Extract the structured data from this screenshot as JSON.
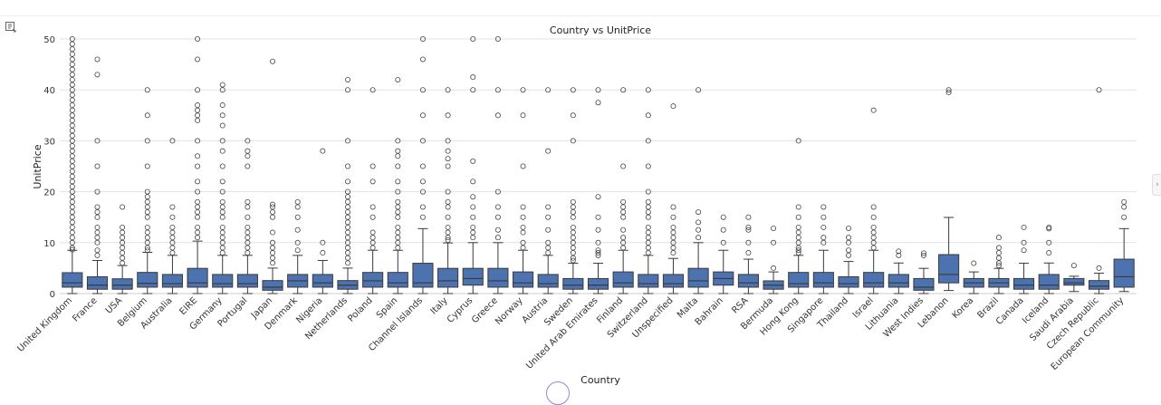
{
  "cell": {
    "output_icon": "output-collapse-icon",
    "side_toggle": "›"
  },
  "chart_data": {
    "type": "boxplot",
    "title": "Country vs UnitPrice",
    "xlabel": "Country",
    "ylabel": "UnitPrice",
    "ylim": [
      0,
      50
    ],
    "yticks": [
      0,
      10,
      20,
      30,
      40,
      50
    ],
    "grid": "horizontal",
    "box_color": "#4c72b0",
    "categories": [
      {
        "name": "United Kingdom",
        "q1": 1.25,
        "median": 2.1,
        "q3": 4.1,
        "lo": 0,
        "hi": 8.5,
        "outliers": [
          8.6,
          9,
          10,
          11,
          12,
          13,
          14,
          15,
          16,
          17,
          18,
          19,
          20,
          21,
          22,
          23,
          24,
          25,
          26,
          27,
          28,
          29,
          30,
          31,
          32,
          33,
          34,
          35,
          36,
          37,
          38,
          39,
          40,
          41,
          42,
          43,
          44,
          45,
          46,
          47,
          48,
          49,
          50
        ]
      },
      {
        "name": "France",
        "q1": 0.85,
        "median": 1.65,
        "q3": 3.3,
        "lo": 0,
        "hi": 6.5,
        "outliers": [
          7.5,
          8.5,
          10,
          11,
          12,
          13,
          15,
          16,
          17,
          20,
          25,
          30,
          43,
          46
        ]
      },
      {
        "name": "USA",
        "q1": 0.85,
        "median": 1.65,
        "q3": 2.9,
        "lo": 0,
        "hi": 5.5,
        "outliers": [
          6,
          7,
          8,
          9,
          10,
          11,
          12,
          13,
          17
        ]
      },
      {
        "name": "Belgium",
        "q1": 1.25,
        "median": 2.0,
        "q3": 4.15,
        "lo": 0,
        "hi": 8.1,
        "outliers": [
          8.5,
          9,
          10,
          11,
          12,
          13,
          15,
          16,
          17,
          18,
          19,
          20,
          25,
          30,
          35,
          40
        ]
      },
      {
        "name": "Australia",
        "q1": 1.25,
        "median": 1.95,
        "q3": 3.75,
        "lo": 0,
        "hi": 7.5,
        "outliers": [
          8,
          9,
          10,
          11,
          12,
          13,
          15,
          17,
          30
        ]
      },
      {
        "name": "EIRE",
        "q1": 1.25,
        "median": 2.1,
        "q3": 4.95,
        "lo": 0,
        "hi": 10.3,
        "outliers": [
          11,
          12,
          13,
          15,
          16,
          17,
          18,
          20,
          22,
          25,
          27,
          30,
          34,
          35,
          36,
          37,
          40,
          46,
          50
        ]
      },
      {
        "name": "Germany",
        "q1": 1.25,
        "median": 1.95,
        "q3": 3.75,
        "lo": 0,
        "hi": 7.5,
        "outliers": [
          8,
          9,
          10,
          11,
          12,
          13,
          15,
          16,
          17,
          18,
          20,
          22,
          25,
          28,
          30,
          33,
          35,
          37,
          40,
          41
        ]
      },
      {
        "name": "Portugal",
        "q1": 1.25,
        "median": 1.95,
        "q3": 3.75,
        "lo": 0,
        "hi": 7.5,
        "outliers": [
          8,
          9,
          10,
          11,
          12,
          13,
          15,
          17,
          18,
          25,
          27,
          28,
          30
        ]
      },
      {
        "name": "Japan",
        "q1": 0.65,
        "median": 1.25,
        "q3": 2.55,
        "lo": 0,
        "hi": 5.0,
        "outliers": [
          6,
          7,
          8,
          9,
          10,
          12,
          15,
          16,
          17,
          17.5,
          45.6
        ]
      },
      {
        "name": "Denmark",
        "q1": 1.25,
        "median": 2.5,
        "q3": 3.75,
        "lo": 0,
        "hi": 7.5,
        "outliers": [
          8.5,
          10,
          12.5,
          15,
          17,
          18
        ]
      },
      {
        "name": "Nigeria",
        "q1": 1.25,
        "median": 2.1,
        "q3": 3.75,
        "lo": 0,
        "hi": 6.5,
        "outliers": [
          8,
          10,
          28
        ]
      },
      {
        "name": "Netherlands",
        "q1": 0.85,
        "median": 1.65,
        "q3": 2.55,
        "lo": 0,
        "hi": 5.0,
        "outliers": [
          6,
          7,
          8,
          9,
          10,
          11,
          12,
          13,
          14,
          15,
          16,
          17,
          18,
          19,
          20,
          22,
          25,
          30,
          40,
          42
        ]
      },
      {
        "name": "Poland",
        "q1": 1.25,
        "median": 2.5,
        "q3": 4.15,
        "lo": 0,
        "hi": 8.5,
        "outliers": [
          9,
          10,
          11,
          12,
          15,
          17,
          22,
          25,
          40
        ]
      },
      {
        "name": "Spain",
        "q1": 1.25,
        "median": 2.1,
        "q3": 4.15,
        "lo": 0,
        "hi": 8.5,
        "outliers": [
          9,
          10,
          11,
          12,
          13,
          15,
          16,
          17,
          18,
          20,
          22,
          25,
          27,
          28,
          30,
          42
        ]
      },
      {
        "name": "Channel Islands",
        "q1": 1.25,
        "median": 2.1,
        "q3": 5.95,
        "lo": 0,
        "hi": 12.75,
        "outliers": [
          15,
          17,
          20,
          22,
          25,
          30,
          35,
          40,
          46,
          50
        ]
      },
      {
        "name": "Italy",
        "q1": 1.25,
        "median": 2.5,
        "q3": 4.95,
        "lo": 0,
        "hi": 9.95,
        "outliers": [
          10.5,
          11,
          12,
          13,
          15,
          17,
          18,
          20,
          25,
          26.5,
          28,
          30,
          35,
          40
        ]
      },
      {
        "name": "Cyprus",
        "q1": 1.65,
        "median": 2.95,
        "q3": 4.95,
        "lo": 0,
        "hi": 10,
        "outliers": [
          11,
          12,
          13,
          15,
          17,
          19,
          22,
          26,
          40,
          42.5,
          50
        ]
      },
      {
        "name": "Greece",
        "q1": 1.25,
        "median": 2.5,
        "q3": 4.95,
        "lo": 0,
        "hi": 10,
        "outliers": [
          11,
          12.5,
          15,
          17,
          20,
          35,
          40,
          50
        ]
      },
      {
        "name": "Norway",
        "q1": 1.25,
        "median": 2.1,
        "q3": 4.25,
        "lo": 0,
        "hi": 8.5,
        "outliers": [
          9,
          10,
          12,
          13,
          15,
          17,
          25,
          35,
          40
        ]
      },
      {
        "name": "Austria",
        "q1": 1.25,
        "median": 1.95,
        "q3": 3.75,
        "lo": 0,
        "hi": 7.5,
        "outliers": [
          8,
          9,
          10,
          12.5,
          15,
          17,
          28,
          40
        ]
      },
      {
        "name": "Sweden",
        "q1": 0.85,
        "median": 1.65,
        "q3": 2.95,
        "lo": 0,
        "hi": 5.95,
        "outliers": [
          6.5,
          7,
          8,
          9,
          10,
          11,
          12,
          13,
          15,
          16,
          17,
          18,
          30,
          35,
          40
        ]
      },
      {
        "name": "United Arab Emirates",
        "q1": 0.85,
        "median": 1.65,
        "q3": 2.95,
        "lo": 0,
        "hi": 5.95,
        "outliers": [
          7.5,
          8,
          8.5,
          10,
          12.5,
          15,
          19,
          37.5,
          40
        ]
      },
      {
        "name": "Finland",
        "q1": 1.25,
        "median": 2.1,
        "q3": 4.25,
        "lo": 0,
        "hi": 8.5,
        "outliers": [
          9,
          10,
          11,
          12.5,
          15,
          16,
          17,
          18,
          25,
          40
        ]
      },
      {
        "name": "Switzerland",
        "q1": 1.25,
        "median": 1.95,
        "q3": 3.75,
        "lo": 0,
        "hi": 7.5,
        "outliers": [
          8,
          9,
          10,
          11,
          12,
          13,
          15,
          16,
          17,
          18,
          20,
          25,
          30,
          35,
          40
        ]
      },
      {
        "name": "Unspecified",
        "q1": 1.25,
        "median": 1.95,
        "q3": 3.75,
        "lo": 0,
        "hi": 6.9,
        "outliers": [
          8,
          9,
          10,
          11,
          12,
          13,
          15,
          17,
          36.8
        ]
      },
      {
        "name": "Malta",
        "q1": 1.25,
        "median": 2.5,
        "q3": 4.95,
        "lo": 0,
        "hi": 10,
        "outliers": [
          11,
          12.5,
          14,
          16,
          40
        ]
      },
      {
        "name": "Bahrain",
        "q1": 1.65,
        "median": 2.95,
        "q3": 4.25,
        "lo": 0,
        "hi": 8.5,
        "outliers": [
          10,
          12.5,
          15
        ]
      },
      {
        "name": "RSA",
        "q1": 1.25,
        "median": 2.1,
        "q3": 3.75,
        "lo": 0,
        "hi": 6.75,
        "outliers": [
          8,
          10,
          12.5,
          13,
          15
        ]
      },
      {
        "name": "Bermuda",
        "q1": 0.85,
        "median": 1.65,
        "q3": 2.5,
        "lo": 0,
        "hi": 4.25,
        "outliers": [
          5,
          10,
          12.8
        ]
      },
      {
        "name": "Hong Kong",
        "q1": 1.25,
        "median": 1.95,
        "q3": 4.15,
        "lo": 0,
        "hi": 7.5,
        "outliers": [
          8,
          8.5,
          9,
          10,
          11,
          12,
          13,
          15,
          17,
          30
        ]
      },
      {
        "name": "Singapore",
        "q1": 1.25,
        "median": 2.1,
        "q3": 4.15,
        "lo": 0,
        "hi": 8.5,
        "outliers": [
          10,
          11,
          13,
          15,
          17
        ]
      },
      {
        "name": "Thailand",
        "q1": 1.25,
        "median": 1.95,
        "q3": 3.3,
        "lo": 0,
        "hi": 6.3,
        "outliers": [
          7.5,
          8.5,
          10,
          11,
          12.8
        ]
      },
      {
        "name": "Israel",
        "q1": 1.25,
        "median": 2.1,
        "q3": 4.15,
        "lo": 0,
        "hi": 8.5,
        "outliers": [
          9,
          10,
          11,
          12,
          13,
          15,
          17,
          36
        ]
      },
      {
        "name": "Lithuania",
        "q1": 1.25,
        "median": 2.1,
        "q3": 3.75,
        "lo": 0,
        "hi": 6.0,
        "outliers": [
          7.5,
          8.3
        ]
      },
      {
        "name": "West Indies",
        "q1": 0.65,
        "median": 1.25,
        "q3": 2.95,
        "lo": 0,
        "hi": 4.95,
        "outliers": [
          7.5,
          7.95
        ]
      },
      {
        "name": "Lebanon",
        "q1": 2.1,
        "median": 3.75,
        "q3": 7.65,
        "lo": 0.6,
        "hi": 14.95,
        "outliers": [
          39.5,
          40
        ]
      },
      {
        "name": "Korea",
        "q1": 1.25,
        "median": 2.1,
        "q3": 2.95,
        "lo": 0,
        "hi": 4.25,
        "outliers": [
          5.95
        ]
      },
      {
        "name": "Brazil",
        "q1": 1.25,
        "median": 2.1,
        "q3": 2.95,
        "lo": 0,
        "hi": 4.95,
        "outliers": [
          5.5,
          6,
          7,
          8,
          9,
          11
        ]
      },
      {
        "name": "Canada",
        "q1": 0.85,
        "median": 1.65,
        "q3": 2.95,
        "lo": 0,
        "hi": 5.95,
        "outliers": [
          8.5,
          10,
          13
        ]
      },
      {
        "name": "Iceland",
        "q1": 0.85,
        "median": 1.65,
        "q3": 3.75,
        "lo": 0,
        "hi": 6.0,
        "outliers": [
          8,
          10,
          12.75,
          13
        ]
      },
      {
        "name": "Saudi Arabia",
        "q1": 1.65,
        "median": 2.1,
        "q3": 2.95,
        "lo": 0.4,
        "hi": 3.4,
        "outliers": [
          5.5
        ]
      },
      {
        "name": "Czech Republic",
        "q1": 0.85,
        "median": 1.45,
        "q3": 2.55,
        "lo": 0,
        "hi": 4.0,
        "outliers": [
          5,
          40
        ]
      },
      {
        "name": "European Community",
        "q1": 1.25,
        "median": 3.3,
        "q3": 6.75,
        "lo": 0.4,
        "hi": 12.75,
        "outliers": [
          15,
          17,
          18
        ]
      }
    ]
  }
}
